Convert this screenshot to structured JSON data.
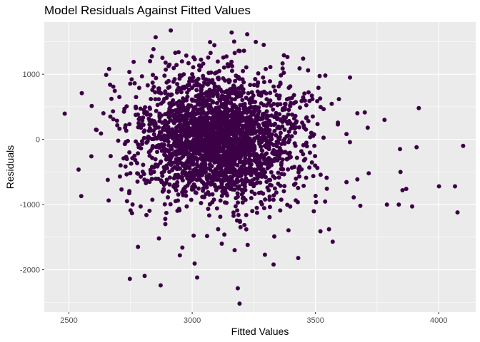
{
  "chart_data": {
    "type": "scatter",
    "title": "Model Residuals Against Fitted Values",
    "xlabel": "Fitted Values",
    "ylabel": "Residuals",
    "xlim": [
      2400,
      4150
    ],
    "ylim": [
      -2650,
      1800
    ],
    "x_ticks": [
      2500,
      3000,
      3500,
      4000
    ],
    "y_ticks": [
      -2000,
      -1000,
      0,
      1000
    ],
    "x_tick_labels": [
      "2500",
      "3000",
      "3500",
      "4000"
    ],
    "y_tick_labels": [
      "-2000",
      "-1000",
      "0",
      "1000"
    ],
    "grid": true,
    "legend": "none",
    "colors": {
      "panel": "#EBEBEB",
      "grid": "#FFFFFF",
      "point": "#3B0046",
      "tick": "#4D4D4D"
    },
    "cluster": {
      "x_center": 3110,
      "x_sd": 165,
      "y_center": 0,
      "y_sd": 480,
      "n": 2600
    },
    "points": [
      [
        2483,
        395
      ],
      [
        2550,
        -870
      ],
      [
        2552,
        710
      ],
      [
        2591,
        -260
      ],
      [
        2612,
        145
      ],
      [
        2630,
        90
      ],
      [
        2640,
        400
      ],
      [
        2651,
        990
      ],
      [
        2668,
        350
      ],
      [
        2686,
        745
      ],
      [
        2700,
        -20
      ],
      [
        2728,
        180
      ],
      [
        2735,
        -300
      ],
      [
        2745,
        1035
      ],
      [
        2747,
        -2140
      ],
      [
        2750,
        -1090
      ],
      [
        2777,
        -520
      ],
      [
        2780,
        -1650
      ],
      [
        2792,
        180
      ],
      [
        2807,
        -2095
      ],
      [
        2829,
        1200
      ],
      [
        2836,
        1275
      ],
      [
        2843,
        1385
      ],
      [
        2865,
        -1520
      ],
      [
        2872,
        -2240
      ],
      [
        2891,
        -1300
      ],
      [
        2925,
        1095
      ],
      [
        2950,
        -1780
      ],
      [
        2960,
        -1660
      ],
      [
        2985,
        1170
      ],
      [
        3010,
        -1905
      ],
      [
        3020,
        -2120
      ],
      [
        3035,
        1120
      ],
      [
        3065,
        1255
      ],
      [
        3090,
        1445
      ],
      [
        3120,
        -1600
      ],
      [
        3160,
        1640
      ],
      [
        3170,
        1500
      ],
      [
        3172,
        -1700
      ],
      [
        3185,
        -2285
      ],
      [
        3192,
        -2520
      ],
      [
        3210,
        1360
      ],
      [
        3225,
        -1620
      ],
      [
        3258,
        1495
      ],
      [
        3290,
        1450
      ],
      [
        3295,
        -1770
      ],
      [
        3317,
        1110
      ],
      [
        3330,
        -1920
      ],
      [
        3333,
        -1490
      ],
      [
        3372,
        1290
      ],
      [
        3430,
        -1820
      ],
      [
        3450,
        1240
      ],
      [
        3470,
        1060
      ],
      [
        3520,
        -1410
      ],
      [
        3540,
        980
      ],
      [
        3555,
        -1380
      ],
      [
        3570,
        -1570
      ],
      [
        3640,
        950
      ],
      [
        3655,
        -890
      ],
      [
        3670,
        400
      ],
      [
        3682,
        -1020
      ],
      [
        3700,
        415
      ],
      [
        3712,
        180
      ],
      [
        3716,
        -520
      ],
      [
        3780,
        300
      ],
      [
        3790,
        -1000
      ],
      [
        3838,
        -1000
      ],
      [
        3843,
        -150
      ],
      [
        3845,
        -500
      ],
      [
        3853,
        -780
      ],
      [
        3868,
        -760
      ],
      [
        3892,
        -1030
      ],
      [
        3910,
        -120
      ],
      [
        3919,
        480
      ],
      [
        4001,
        -720
      ],
      [
        4066,
        -720
      ],
      [
        4076,
        -1120
      ],
      [
        4099,
        -100
      ]
    ]
  }
}
